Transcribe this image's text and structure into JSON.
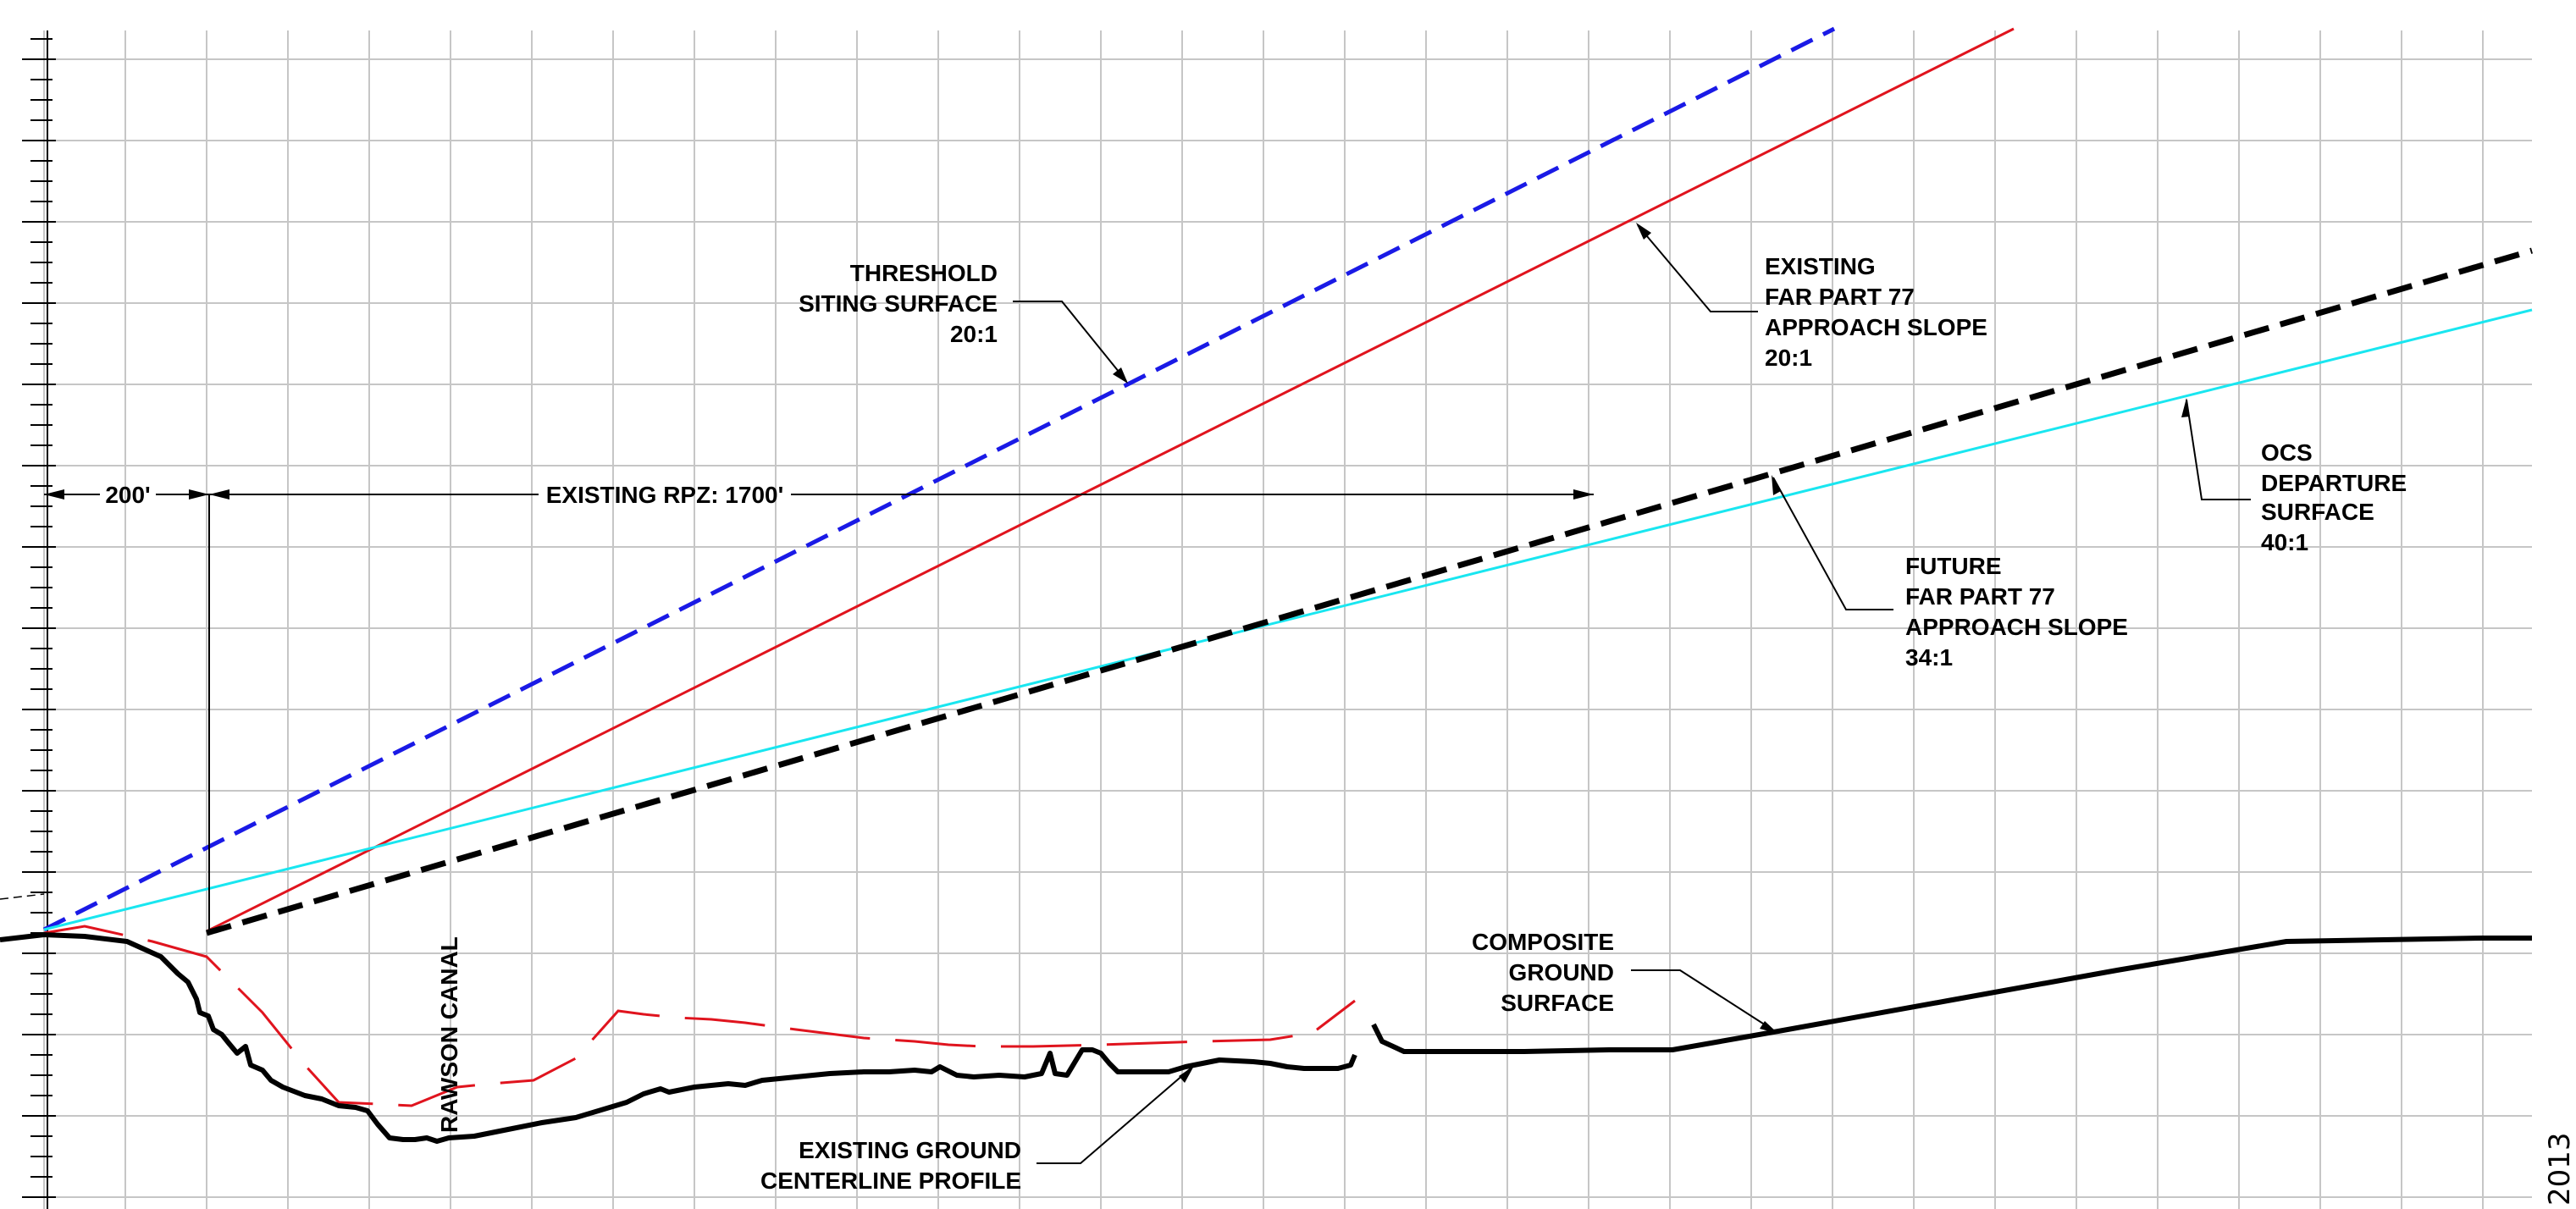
{
  "colors": {
    "grid": "#c6c6c6",
    "threshold_surface": "#1a1ae6",
    "existing_approach": "#e0141e",
    "future_approach": "#000000",
    "ocs_departure": "#19e6f0",
    "ground": "#000000",
    "secondary_profile": "#e0141e",
    "annotation": "#000000"
  },
  "dimensions": {
    "left_dim_label": "200'",
    "rpz_label": "EXISTING RPZ: 1700'"
  },
  "labels": {
    "threshold": [
      "THRESHOLD",
      "SITING SURFACE",
      "20:1"
    ],
    "existing_approach": [
      "EXISTING",
      "FAR PART 77",
      "APPROACH SLOPE",
      "20:1"
    ],
    "ocs_departure": [
      "OCS",
      "DEPARTURE",
      "SURFACE",
      "40:1"
    ],
    "future_approach": [
      "FUTURE",
      "FAR PART 77",
      "APPROACH SLOPE",
      "34:1"
    ],
    "composite": [
      "COMPOSITE",
      "GROUND",
      "SURFACE"
    ],
    "existing_ground": [
      "EXISTING GROUND",
      "CENTERLINE PROFILE"
    ],
    "canal": "RAWSON CANAL"
  },
  "footer": {
    "year": "2013"
  }
}
